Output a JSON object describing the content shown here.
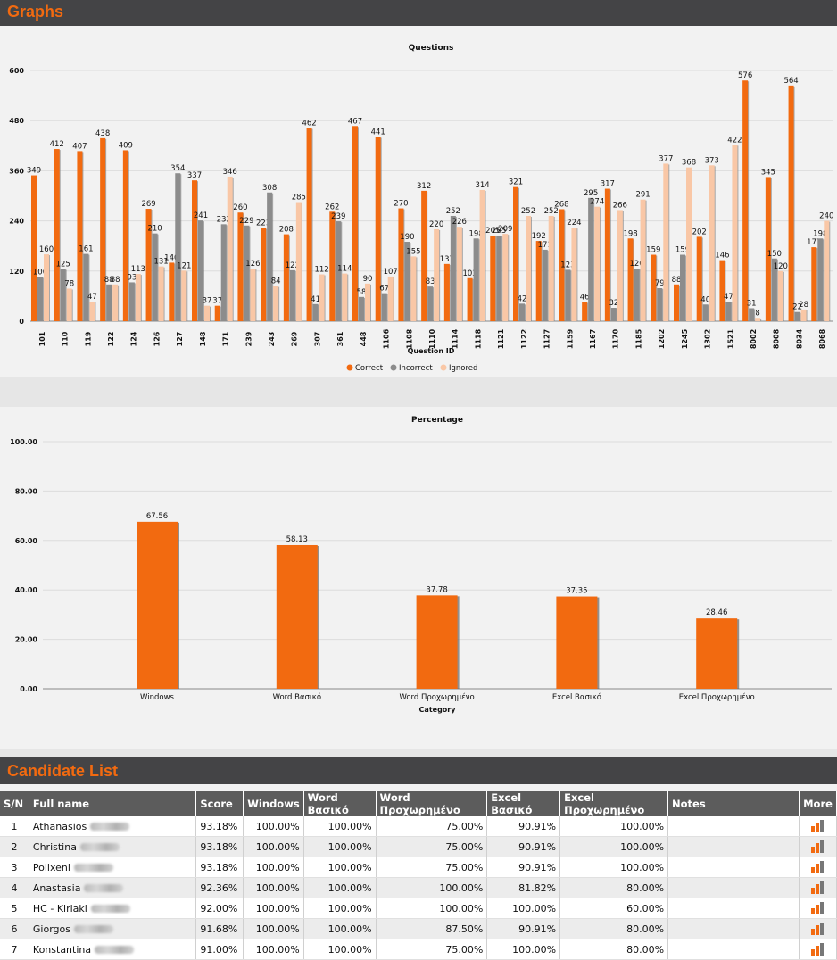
{
  "headers": {
    "graphs": "Graphs",
    "candidates": "Candidate List"
  },
  "chart_data": [
    {
      "type": "bar",
      "title": "Questions",
      "xlabel": "Question ID",
      "ylabel": "",
      "ylim": [
        0,
        600
      ],
      "yticks": [
        "0",
        "120",
        "240",
        "360",
        "480",
        "600"
      ],
      "legend_position": "bottom",
      "grid": true,
      "categories": [
        "101",
        "110",
        "119",
        "122",
        "124",
        "126",
        "127",
        "148",
        "171",
        "239",
        "243",
        "269",
        "307",
        "361",
        "448",
        "1106",
        "1108",
        "1110",
        "1114",
        "1118",
        "1121",
        "1122",
        "1127",
        "1159",
        "1167",
        "1170",
        "1185",
        "1202",
        "1245",
        "1302",
        "1521",
        "8002",
        "8008",
        "8034",
        "8068"
      ],
      "series": [
        {
          "name": "Correct",
          "color": "#f26a10",
          "values": [
            349,
            412,
            407,
            438,
            409,
            269,
            140,
            337,
            37,
            260,
            223,
            208,
            462,
            262,
            467,
            441,
            270,
            312,
            137,
            103,
            205,
            321,
            192,
            268,
            46,
            317,
            198,
            159,
            88,
            202,
            146,
            576,
            345,
            564,
            177
          ]
        },
        {
          "name": "Incorrect",
          "color": "#8c8c8c",
          "values": [
            106,
            125,
            161,
            88,
            93,
            210,
            354,
            241,
            232,
            229,
            308,
            122,
            41,
            239,
            58,
            67,
            190,
            83,
            252,
            198,
            205,
            42,
            171,
            123,
            295,
            32,
            126,
            79,
            159,
            40,
            47,
            31,
            150,
            22,
            198
          ]
        },
        {
          "name": "Ignored",
          "color": "#f9c7a6",
          "values": [
            160,
            78,
            47,
            88,
            113,
            131,
            121,
            37,
            346,
            126,
            84,
            285,
            112,
            114,
            90,
            107,
            155,
            220,
            226,
            314,
            209,
            252,
            252,
            224,
            274,
            266,
            291,
            377,
            368,
            373,
            422,
            8,
            120,
            28,
            240
          ]
        }
      ]
    },
    {
      "type": "bar",
      "title": "Percentage",
      "xlabel": "Category",
      "ylabel": "",
      "ylim": [
        0,
        100
      ],
      "yticks": [
        "0.00",
        "20.00",
        "40.00",
        "60.00",
        "80.00",
        "100.00"
      ],
      "grid": true,
      "categories": [
        "Windows",
        "Word Βασικό",
        "Word Προχωρημένο",
        "Excel Βασικό",
        "Excel Προχωρημένο"
      ],
      "values": [
        67.56,
        58.13,
        37.78,
        37.35,
        28.46
      ],
      "labels": [
        "67.56",
        "58.13",
        "37.78",
        "37.35",
        "28.46"
      ],
      "color": "#f26a10"
    }
  ],
  "table": {
    "columns": [
      "S/N",
      "Full name",
      "Score",
      "Windows",
      "Word Βασικό",
      "Word Προχωρημένο",
      "Excel Βασικό",
      "Excel Προχωρημένο",
      "Notes",
      "More"
    ],
    "rows": [
      {
        "sn": "1",
        "name": "Athanasios",
        "score": "93.18%",
        "windows": "100.00%",
        "word_basic": "100.00%",
        "word_adv": "75.00%",
        "excel_basic": "90.91%",
        "excel_adv": "100.00%",
        "notes": ""
      },
      {
        "sn": "2",
        "name": "Christina",
        "score": "93.18%",
        "windows": "100.00%",
        "word_basic": "100.00%",
        "word_adv": "75.00%",
        "excel_basic": "90.91%",
        "excel_adv": "100.00%",
        "notes": ""
      },
      {
        "sn": "3",
        "name": "Polixeni",
        "score": "93.18%",
        "windows": "100.00%",
        "word_basic": "100.00%",
        "word_adv": "75.00%",
        "excel_basic": "90.91%",
        "excel_adv": "100.00%",
        "notes": ""
      },
      {
        "sn": "4",
        "name": "Anastasia",
        "score": "92.36%",
        "windows": "100.00%",
        "word_basic": "100.00%",
        "word_adv": "100.00%",
        "excel_basic": "81.82%",
        "excel_adv": "80.00%",
        "notes": ""
      },
      {
        "sn": "5",
        "name": "HC - Kiriaki",
        "score": "92.00%",
        "windows": "100.00%",
        "word_basic": "100.00%",
        "word_adv": "100.00%",
        "excel_basic": "100.00%",
        "excel_adv": "60.00%",
        "notes": ""
      },
      {
        "sn": "6",
        "name": "Giorgos",
        "score": "91.68%",
        "windows": "100.00%",
        "word_basic": "100.00%",
        "word_adv": "87.50%",
        "excel_basic": "90.91%",
        "excel_adv": "80.00%",
        "notes": ""
      },
      {
        "sn": "7",
        "name": "Konstantina",
        "score": "91.00%",
        "windows": "100.00%",
        "word_basic": "100.00%",
        "word_adv": "75.00%",
        "excel_basic": "100.00%",
        "excel_adv": "80.00%",
        "notes": ""
      }
    ],
    "more_icon": "bar-chart-icon"
  }
}
